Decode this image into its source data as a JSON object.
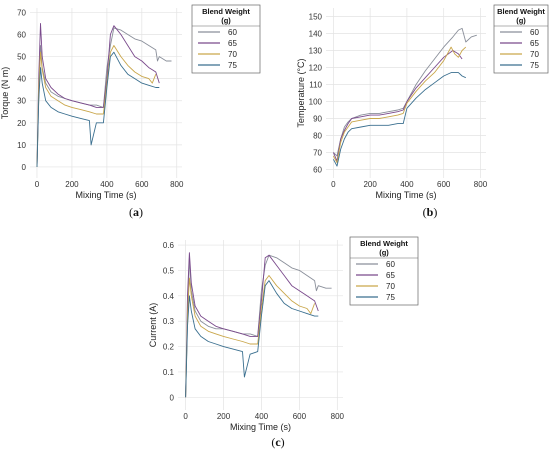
{
  "chart_data": [
    {
      "type": "line",
      "caption": "(a)",
      "xlabel": "Mixing Time (s)",
      "ylabel": "Torque (N m)",
      "xlim": [
        -40,
        830
      ],
      "ylim": [
        -5,
        72
      ],
      "xticks": [
        0,
        200,
        400,
        600,
        800
      ],
      "yticks": [
        0,
        10,
        20,
        30,
        40,
        50,
        60,
        70
      ],
      "legend": {
        "title": "Blend Weight (g)",
        "title_lines": [
          "Blend Weight",
          "(g)"
        ],
        "position": "outside-right"
      },
      "series": [
        {
          "name": "60",
          "color": "#8a8f9a",
          "x": [
            0,
            10,
            20,
            30,
            50,
            80,
            120,
            160,
            200,
            250,
            300,
            340,
            380,
            400,
            420,
            440,
            480,
            520,
            560,
            600,
            640,
            680,
            690,
            700,
            740,
            770
          ],
          "y": [
            0,
            30,
            55,
            45,
            38,
            34,
            32,
            31,
            30,
            29,
            28,
            28,
            27,
            45,
            55,
            63,
            62,
            60,
            58,
            57,
            55,
            53,
            48,
            50,
            48,
            48
          ]
        },
        {
          "name": "65",
          "color": "#7a4a8c",
          "x": [
            0,
            10,
            20,
            30,
            50,
            80,
            120,
            160,
            200,
            250,
            300,
            340,
            380,
            400,
            420,
            440,
            480,
            520,
            560,
            600,
            640,
            660,
            680,
            700
          ],
          "y": [
            0,
            40,
            65,
            50,
            40,
            36,
            33,
            31,
            30,
            29,
            28,
            27,
            27,
            40,
            60,
            64,
            60,
            55,
            50,
            48,
            45,
            44,
            43,
            38
          ]
        },
        {
          "name": "70",
          "color": "#c9a64a",
          "x": [
            0,
            10,
            20,
            30,
            50,
            80,
            120,
            160,
            200,
            250,
            300,
            340,
            380,
            400,
            420,
            440,
            480,
            520,
            560,
            600,
            640,
            660,
            680
          ],
          "y": [
            0,
            35,
            52,
            44,
            36,
            32,
            30,
            28,
            27,
            26,
            25,
            24,
            24,
            38,
            52,
            55,
            50,
            46,
            43,
            41,
            40,
            38,
            42
          ]
        },
        {
          "name": "75",
          "color": "#3a6f8f",
          "x": [
            0,
            10,
            20,
            30,
            50,
            80,
            120,
            160,
            200,
            250,
            300,
            310,
            340,
            380,
            400,
            420,
            440,
            480,
            520,
            560,
            600,
            640,
            680,
            700
          ],
          "y": [
            0,
            30,
            45,
            38,
            30,
            27,
            25,
            24,
            23,
            22,
            21,
            10,
            20,
            20,
            36,
            50,
            52,
            46,
            42,
            40,
            38,
            37,
            36,
            36
          ]
        }
      ]
    },
    {
      "type": "line",
      "caption": "(b)",
      "xlabel": "Mixing Time (s)",
      "ylabel": "Temperature (°C)",
      "xlim": [
        -40,
        830
      ],
      "ylim": [
        55,
        155
      ],
      "xticks": [
        0,
        200,
        400,
        600,
        800
      ],
      "yticks": [
        60,
        70,
        80,
        90,
        100,
        110,
        120,
        130,
        140,
        150
      ],
      "legend": {
        "title": "Blend Weight (g)",
        "title_lines": [
          "Blend Weight",
          "(g)"
        ],
        "position": "outside-right"
      },
      "series": [
        {
          "name": "60",
          "color": "#8a8f9a",
          "x": [
            0,
            20,
            40,
            60,
            80,
            100,
            150,
            200,
            250,
            300,
            350,
            380,
            400,
            450,
            500,
            550,
            600,
            650,
            680,
            700,
            720,
            750,
            780
          ],
          "y": [
            70,
            68,
            78,
            85,
            88,
            90,
            92,
            93,
            93,
            94,
            95,
            96,
            100,
            110,
            118,
            125,
            132,
            138,
            142,
            143,
            135,
            138,
            139
          ]
        },
        {
          "name": "65",
          "color": "#7a4a8c",
          "x": [
            0,
            20,
            40,
            60,
            80,
            100,
            150,
            200,
            250,
            300,
            350,
            380,
            400,
            450,
            500,
            550,
            600,
            650,
            680,
            700
          ],
          "y": [
            70,
            65,
            78,
            83,
            87,
            90,
            91,
            92,
            92,
            93,
            94,
            95,
            100,
            108,
            114,
            120,
            126,
            130,
            128,
            125
          ]
        },
        {
          "name": "70",
          "color": "#c9a64a",
          "x": [
            0,
            20,
            40,
            60,
            80,
            100,
            150,
            200,
            250,
            300,
            350,
            380,
            400,
            450,
            500,
            550,
            600,
            640,
            660,
            680,
            700,
            720
          ],
          "y": [
            68,
            64,
            76,
            82,
            85,
            88,
            89,
            90,
            90,
            91,
            92,
            93,
            99,
            106,
            112,
            117,
            124,
            132,
            128,
            126,
            130,
            132
          ]
        },
        {
          "name": "75",
          "color": "#3a6f8f",
          "x": [
            0,
            20,
            40,
            60,
            80,
            100,
            150,
            200,
            250,
            300,
            350,
            380,
            400,
            450,
            500,
            550,
            600,
            640,
            680,
            700,
            720
          ],
          "y": [
            66,
            62,
            72,
            78,
            82,
            84,
            85,
            86,
            86,
            86,
            87,
            87,
            96,
            102,
            107,
            111,
            115,
            117,
            117,
            115,
            114
          ]
        }
      ]
    },
    {
      "type": "line",
      "caption": "(c)",
      "xlabel": "Mixing Time (s)",
      "ylabel": "Current (A)",
      "xlim": [
        -40,
        830
      ],
      "ylim": [
        -0.05,
        0.62
      ],
      "xticks": [
        0,
        200,
        400,
        600,
        800
      ],
      "yticks": [
        0,
        0.1,
        0.2,
        0.3,
        0.4,
        0.5,
        0.6
      ],
      "legend": {
        "title": "Blend Weight (g)",
        "title_lines": [
          "Blend Weight",
          "(g)"
        ],
        "position": "outside-right"
      },
      "series": [
        {
          "name": "60",
          "color": "#8a8f9a",
          "x": [
            0,
            10,
            20,
            30,
            50,
            80,
            120,
            160,
            200,
            250,
            300,
            340,
            380,
            400,
            420,
            440,
            480,
            520,
            560,
            600,
            640,
            680,
            690,
            700,
            740,
            770
          ],
          "y": [
            0,
            0.3,
            0.55,
            0.42,
            0.34,
            0.3,
            0.28,
            0.27,
            0.27,
            0.26,
            0.25,
            0.25,
            0.24,
            0.42,
            0.52,
            0.56,
            0.55,
            0.53,
            0.51,
            0.5,
            0.48,
            0.46,
            0.42,
            0.44,
            0.43,
            0.43
          ]
        },
        {
          "name": "65",
          "color": "#7a4a8c",
          "x": [
            0,
            10,
            20,
            30,
            50,
            80,
            120,
            160,
            200,
            250,
            300,
            340,
            380,
            400,
            420,
            440,
            480,
            520,
            560,
            600,
            640,
            660,
            680,
            700
          ],
          "y": [
            0,
            0.4,
            0.57,
            0.45,
            0.36,
            0.32,
            0.3,
            0.28,
            0.27,
            0.26,
            0.25,
            0.24,
            0.24,
            0.38,
            0.55,
            0.56,
            0.52,
            0.48,
            0.44,
            0.42,
            0.4,
            0.39,
            0.38,
            0.34
          ]
        },
        {
          "name": "70",
          "color": "#c9a64a",
          "x": [
            0,
            10,
            20,
            30,
            50,
            80,
            120,
            160,
            200,
            250,
            300,
            340,
            380,
            400,
            420,
            440,
            480,
            520,
            560,
            600,
            640,
            660,
            680
          ],
          "y": [
            0,
            0.32,
            0.47,
            0.4,
            0.32,
            0.28,
            0.26,
            0.25,
            0.24,
            0.23,
            0.22,
            0.21,
            0.21,
            0.35,
            0.46,
            0.48,
            0.44,
            0.41,
            0.38,
            0.36,
            0.35,
            0.33,
            0.37
          ]
        },
        {
          "name": "75",
          "color": "#3a6f8f",
          "x": [
            0,
            10,
            20,
            30,
            50,
            80,
            120,
            160,
            200,
            250,
            300,
            310,
            340,
            380,
            400,
            420,
            440,
            480,
            520,
            560,
            600,
            640,
            680,
            700
          ],
          "y": [
            0,
            0.28,
            0.4,
            0.34,
            0.27,
            0.24,
            0.22,
            0.21,
            0.2,
            0.19,
            0.18,
            0.08,
            0.17,
            0.18,
            0.32,
            0.44,
            0.46,
            0.41,
            0.37,
            0.35,
            0.34,
            0.33,
            0.32,
            0.32
          ]
        }
      ]
    }
  ]
}
